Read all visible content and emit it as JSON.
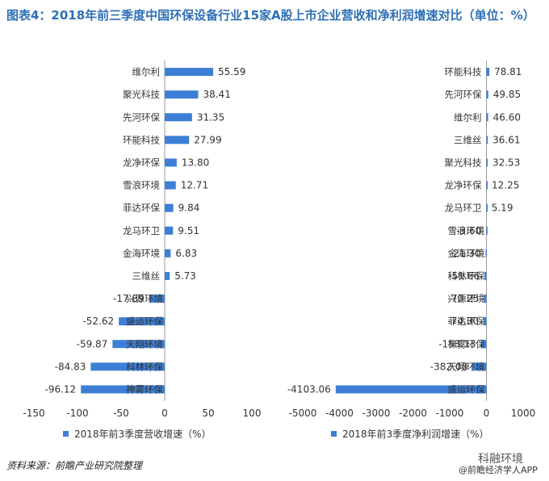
{
  "title": "图表4：2018年前三季度中国环保设备行业15家A股上市企业营收和净利润增速对比（单位：%）",
  "source": "资料来源：前瞻产业研究院整理",
  "brand": "科融环境",
  "brand_sub": "@前瞻经济学人APP",
  "colors": {
    "bar": "#3d7fd6",
    "title": "#2e6fb5",
    "axis": "#999999"
  },
  "chart_data": [
    {
      "type": "bar",
      "orientation": "horizontal",
      "series": [
        {
          "name": "2018年前3季度营收增速（%）"
        }
      ],
      "categories": [
        "维尔利",
        "聚光科技",
        "先河环保",
        "环能科技",
        "龙净环保",
        "雪浪环境",
        "菲达环保",
        "龙马环卫",
        "金海环境",
        "三维丝",
        "兴源环境",
        "盛运环保",
        "天翔环境",
        "科林环保",
        "神雾环保"
      ],
      "values": [
        55.59,
        38.41,
        31.35,
        27.99,
        13.8,
        12.71,
        9.84,
        9.51,
        6.83,
        5.73,
        -17.89,
        -52.62,
        -59.87,
        -84.83,
        -96.12
      ],
      "value_labels": [
        "55.59",
        "38.41",
        "31.35",
        "27.99",
        "13.80",
        "12.71",
        "9.84",
        "9.51",
        "6.83",
        "5.73",
        "-17.89",
        "-52.62",
        "-59.87",
        "-84.83",
        "-96.12"
      ],
      "xlim": [
        -150,
        100
      ],
      "xticks": [
        "-150",
        "-100",
        "-50",
        "0",
        "50",
        "100"
      ],
      "xtick_values": [
        -150,
        -100,
        -50,
        0,
        50,
        100
      ]
    },
    {
      "type": "bar",
      "orientation": "horizontal",
      "series": [
        {
          "name": "2018年前3季度净利润增速（%）"
        }
      ],
      "categories": [
        "环能科技",
        "先河环保",
        "维尔利",
        "三维丝",
        "聚光科技",
        "龙净环保",
        "龙马环卫",
        "雪浪环境",
        "金海环境",
        "科林环保",
        "兴源环境",
        "菲达环保",
        "神雾环保",
        "天翔环境",
        "盛运环保"
      ],
      "values": [
        78.81,
        49.85,
        46.6,
        36.61,
        32.53,
        12.25,
        5.19,
        -3.6,
        -21.3,
        -51.66,
        -70.25,
        -74.3,
        -153.13,
        -382.08,
        -4103.06
      ],
      "value_labels": [
        "78.81",
        "49.85",
        "46.60",
        "36.61",
        "32.53",
        "12.25",
        "5.19",
        "-3.60",
        "-21.30",
        "-51.66",
        "-70.25",
        "-74.30",
        "-153.13",
        "-382.08",
        "-4103.06"
      ],
      "xlim": [
        -5000,
        1000
      ],
      "xticks": [
        "-5000",
        "-4000",
        "-3000",
        "-2000",
        "-1000",
        "0",
        "1000"
      ],
      "xtick_values": [
        -5000,
        -4000,
        -3000,
        -2000,
        -1000,
        0,
        1000
      ]
    }
  ]
}
